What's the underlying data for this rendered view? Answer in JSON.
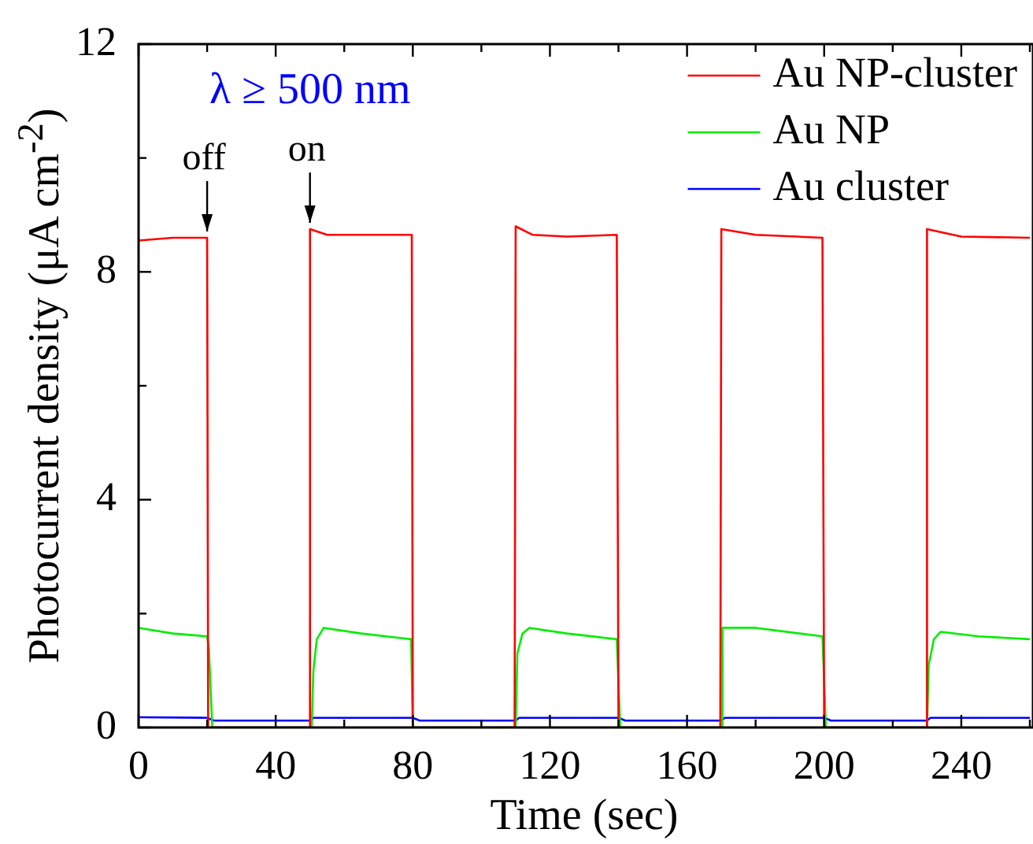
{
  "chart_data": {
    "type": "line",
    "xlabel": "Time (sec)",
    "ylabel": "Photocurrent density (μA cm$^{-2}$)",
    "xlim": [
      0,
      260
    ],
    "xticks": [
      0,
      {
        "value": 20,
        "label": null
      },
      40,
      {
        "value": 60,
        "label": null
      },
      80,
      {
        "value": 100,
        "label": null
      },
      120,
      {
        "value": 140,
        "label": null
      },
      160,
      {
        "value": 180,
        "label": null
      },
      200,
      {
        "value": 220,
        "label": null
      },
      240,
      {
        "value": 260,
        "label": null
      }
    ],
    "ylim": [
      0,
      12
    ],
    "yticks": [
      0,
      {
        "value": 2,
        "label": null
      },
      4,
      {
        "value": 6,
        "label": null
      },
      8,
      {
        "value": 10,
        "label": null
      },
      12
    ],
    "grid": false,
    "legend": "top right",
    "marker": "none",
    "line_style": "solid",
    "annotations": [
      "λ ≥ 500 nm",
      {
        "text": "off",
        "x": 20,
        "y": 8.6
      },
      {
        "text": "on",
        "x": 50,
        "y": 8.75
      }
    ],
    "series": [
      {
        "name": "Au NP-cluster",
        "color": "#ff0000",
        "x": [
          0,
          10,
          20,
          20.3,
          49.7,
          50,
          55,
          65,
          79.7,
          80,
          109.7,
          110,
          115,
          125,
          139.5,
          140,
          169.7,
          170,
          180,
          199.5,
          200,
          229.7,
          230,
          240,
          260
        ],
        "values": [
          8.55,
          8.6,
          8.6,
          0,
          0,
          8.75,
          8.65,
          8.65,
          8.65,
          0,
          0,
          8.8,
          8.65,
          8.62,
          8.65,
          0,
          0,
          8.75,
          8.65,
          8.6,
          0,
          0,
          8.75,
          8.62,
          8.6
        ]
      },
      {
        "name": "Au NP",
        "color": "#00ee00",
        "x": [
          0,
          10,
          20,
          20.5,
          21.5,
          50.5,
          51,
          52,
          54,
          65,
          79.5,
          80,
          110,
          110.5,
          112,
          114,
          125,
          139.5,
          140.5,
          170,
          170.3,
          180,
          199.5,
          200.5,
          230,
          230.5,
          232,
          234,
          245,
          260
        ],
        "values": [
          1.75,
          1.65,
          1.6,
          1.4,
          0,
          0,
          1.0,
          1.55,
          1.75,
          1.65,
          1.55,
          0,
          0,
          1.3,
          1.65,
          1.75,
          1.65,
          1.55,
          0,
          0,
          1.75,
          1.75,
          1.6,
          0,
          0,
          1.1,
          1.55,
          1.68,
          1.6,
          1.55
        ]
      },
      {
        "name": "Au cluster",
        "color": "#0000ff",
        "x": [
          0,
          20,
          22,
          50,
          51,
          80,
          82,
          110,
          111,
          140,
          142,
          170,
          171,
          200,
          202,
          230,
          231,
          260
        ],
        "values": [
          0.18,
          0.17,
          0.12,
          0.12,
          0.17,
          0.17,
          0.12,
          0.12,
          0.17,
          0.17,
          0.12,
          0.12,
          0.17,
          0.17,
          0.12,
          0.12,
          0.17,
          0.17
        ]
      }
    ]
  }
}
